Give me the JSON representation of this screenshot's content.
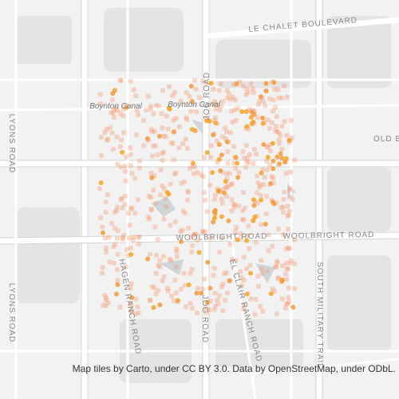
{
  "labels": [
    "LE CHALET BOULEVARD",
    "Boynton Canal",
    "Boynton Canal",
    "OLD B",
    "JOG ROAD",
    "JOG ROAD",
    "WOOLBRIGHT ROAD",
    "WOOLBRIGHT ROAD",
    "LYONS ROAD",
    "LYONS ROAD",
    "HAGEN RANCH ROAD",
    "EL CLAIR RANCH ROAD",
    "SOUTH MILITARY TRAIL"
  ],
  "attribution": "Map tiles by Carto, under CC BY 3.0. Data by OpenStreetMap, under ODbL."
}
